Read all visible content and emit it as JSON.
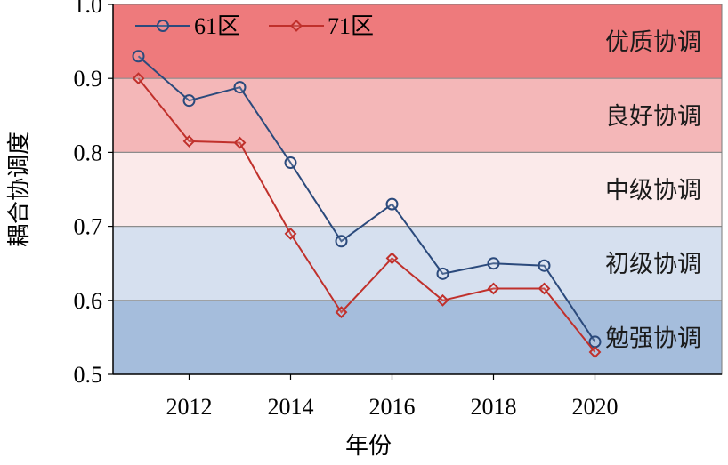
{
  "chart_data": {
    "type": "line",
    "xlabel": "年份",
    "ylabel": "耦合协调度",
    "ylim": [
      0.5,
      1.0
    ],
    "xlim": [
      2010.5,
      2022.5
    ],
    "x": [
      2011,
      2012,
      2013,
      2014,
      2015,
      2016,
      2017,
      2018,
      2019,
      2020
    ],
    "x_ticks": [
      "2012",
      "2014",
      "2016",
      "2018",
      "2020"
    ],
    "x_tick_values": [
      2012,
      2014,
      2016,
      2018,
      2020
    ],
    "y_ticks": [
      "1.0",
      "0.9",
      "0.8",
      "0.7",
      "0.6",
      "0.5"
    ],
    "y_tick_values": [
      1.0,
      0.9,
      0.8,
      0.7,
      0.6,
      0.5
    ],
    "series": [
      {
        "name": "61区",
        "color": "#2b4a7c",
        "marker": "circle",
        "values": [
          0.93,
          0.87,
          0.888,
          0.786,
          0.68,
          0.73,
          0.636,
          0.65,
          0.647,
          0.544
        ]
      },
      {
        "name": "71区",
        "color": "#c0302b",
        "marker": "diamond",
        "values": [
          0.9,
          0.815,
          0.813,
          0.69,
          0.584,
          0.657,
          0.6,
          0.616,
          0.616,
          0.53
        ]
      }
    ],
    "bands": [
      {
        "label": "优质协调",
        "from": 0.9,
        "to": 1.0,
        "color": "#ee7a7c"
      },
      {
        "label": "良好协调",
        "from": 0.8,
        "to": 0.9,
        "color": "#f4b7b8"
      },
      {
        "label": "中级协调",
        "from": 0.7,
        "to": 0.8,
        "color": "#fbeaea"
      },
      {
        "label": "初级协调",
        "from": 0.6,
        "to": 0.7,
        "color": "#d6e0ef"
      },
      {
        "label": "勉强协调",
        "from": 0.5,
        "to": 0.6,
        "color": "#a5bddc"
      }
    ],
    "legend_position": "top-left",
    "grid": false
  }
}
